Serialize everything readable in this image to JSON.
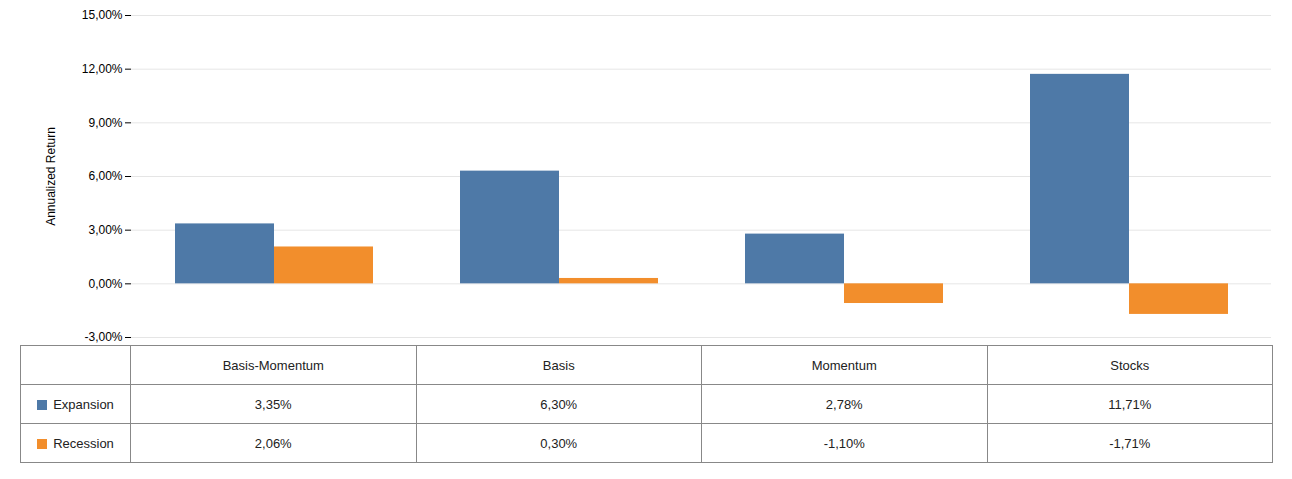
{
  "chart_data": {
    "type": "bar",
    "categories": [
      "Basis-Momentum",
      "Basis",
      "Momentum",
      "Stocks"
    ],
    "series": [
      {
        "name": "Expansion",
        "values": [
          0.0335,
          0.063,
          0.0278,
          0.1171
        ],
        "value_labels": [
          "3,35%",
          "6,30%",
          "2,78%",
          "11,71%"
        ]
      },
      {
        "name": "Recession",
        "values": [
          0.0206,
          0.003,
          -0.011,
          -0.0171
        ],
        "value_labels": [
          "2,06%",
          "0,30%",
          "-1,10%",
          "-1,71%"
        ]
      }
    ],
    "ylabel": "Annualized Return",
    "ylim": [
      -0.03,
      0.15
    ],
    "yticks": [
      {
        "value": -0.03,
        "label": "-3,00%"
      },
      {
        "value": 0.0,
        "label": "0,00%"
      },
      {
        "value": 0.03,
        "label": "3,00%"
      },
      {
        "value": 0.06,
        "label": "6,00%"
      },
      {
        "value": 0.09,
        "label": "9,00%"
      },
      {
        "value": 0.12,
        "label": "12,00%"
      },
      {
        "value": 0.15,
        "label": "15,00%"
      }
    ],
    "grid": true
  }
}
